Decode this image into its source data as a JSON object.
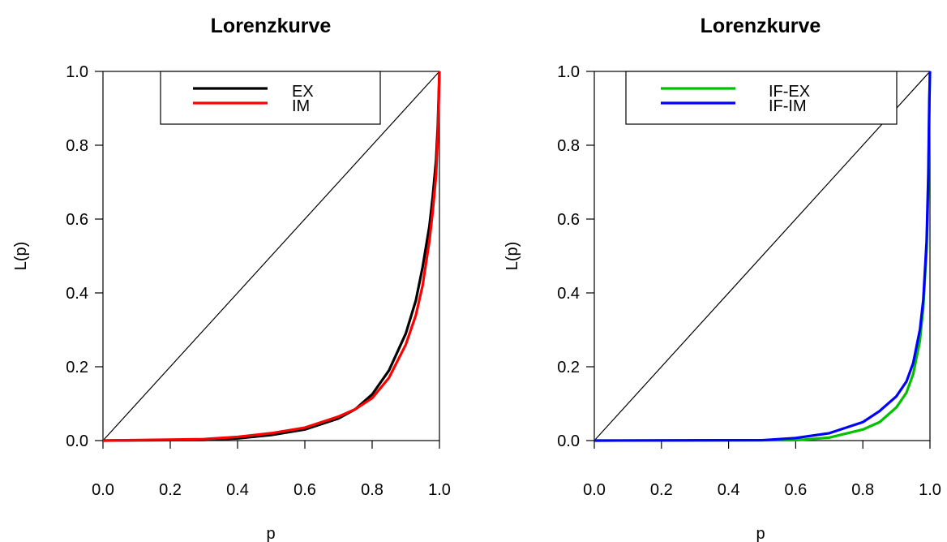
{
  "chart_data": [
    {
      "type": "line",
      "title": "Lorenzkurve",
      "xlabel": "p",
      "ylabel": "L(p)",
      "xlim": [
        0,
        1
      ],
      "ylim": [
        0,
        1
      ],
      "x_ticks": [
        "0.0",
        "0.2",
        "0.4",
        "0.6",
        "0.8",
        "1.0"
      ],
      "y_ticks": [
        "0.0",
        "0.2",
        "0.4",
        "0.6",
        "0.8",
        "1.0"
      ],
      "legend_position": "top",
      "equality_line": {
        "x": [
          0,
          1
        ],
        "y": [
          0,
          1
        ],
        "color": "#000000"
      },
      "series": [
        {
          "name": "EX",
          "color": "#000000",
          "x": [
            0.0,
            0.3,
            0.4,
            0.5,
            0.6,
            0.7,
            0.75,
            0.8,
            0.85,
            0.9,
            0.93,
            0.95,
            0.97,
            0.98,
            0.99,
            0.995,
            1.0
          ],
          "y": [
            0.0,
            0.002,
            0.006,
            0.015,
            0.03,
            0.06,
            0.085,
            0.125,
            0.19,
            0.29,
            0.38,
            0.47,
            0.58,
            0.66,
            0.76,
            0.85,
            1.0
          ]
        },
        {
          "name": "IM",
          "color": "#ff0000",
          "x": [
            0.0,
            0.3,
            0.4,
            0.5,
            0.6,
            0.7,
            0.75,
            0.8,
            0.85,
            0.9,
            0.93,
            0.95,
            0.97,
            0.98,
            0.99,
            0.995,
            1.0
          ],
          "y": [
            0.0,
            0.004,
            0.01,
            0.02,
            0.035,
            0.065,
            0.085,
            0.115,
            0.17,
            0.26,
            0.34,
            0.42,
            0.54,
            0.62,
            0.72,
            0.82,
            1.0
          ]
        }
      ]
    },
    {
      "type": "line",
      "title": "Lorenzkurve",
      "xlabel": "p",
      "ylabel": "L(p)",
      "xlim": [
        0,
        1
      ],
      "ylim": [
        0,
        1
      ],
      "x_ticks": [
        "0.0",
        "0.2",
        "0.4",
        "0.6",
        "0.8",
        "1.0"
      ],
      "y_ticks": [
        "0.0",
        "0.2",
        "0.4",
        "0.6",
        "0.8",
        "1.0"
      ],
      "legend_position": "top",
      "equality_line": {
        "x": [
          0,
          1
        ],
        "y": [
          0,
          1
        ],
        "color": "#000000"
      },
      "series": [
        {
          "name": "IF-EX",
          "color": "#00c000",
          "x": [
            0.0,
            0.6,
            0.7,
            0.8,
            0.85,
            0.9,
            0.93,
            0.95,
            0.97,
            0.98,
            0.99,
            0.995,
            0.998,
            1.0
          ],
          "y": [
            0.0,
            0.001,
            0.008,
            0.03,
            0.05,
            0.09,
            0.13,
            0.18,
            0.27,
            0.36,
            0.52,
            0.68,
            0.9,
            1.0
          ]
        },
        {
          "name": "IF-IM",
          "color": "#0000ff",
          "x": [
            0.0,
            0.5,
            0.6,
            0.7,
            0.8,
            0.85,
            0.9,
            0.93,
            0.95,
            0.97,
            0.98,
            0.99,
            0.995,
            0.998,
            1.0
          ],
          "y": [
            0.0,
            0.001,
            0.007,
            0.02,
            0.05,
            0.08,
            0.12,
            0.16,
            0.21,
            0.3,
            0.38,
            0.54,
            0.72,
            0.92,
            1.0
          ]
        }
      ]
    }
  ]
}
